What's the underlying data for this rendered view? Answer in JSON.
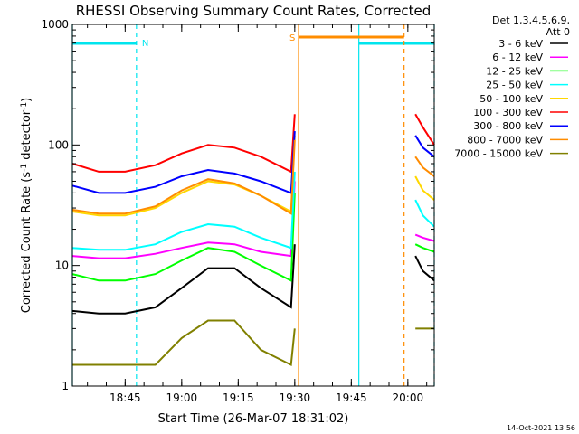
{
  "chart_data": {
    "type": "line",
    "title": "RHESSI Observing Summary Count Rates, Corrected",
    "ylabel": "Corrected Count Rate (s⁻¹ detector⁻¹)",
    "xlabel": "Start Time (26-Mar-07 18:31:02)",
    "yscale": "log",
    "ylim": [
      1,
      1000
    ],
    "xlim": [
      "18:31",
      "20:07"
    ],
    "x_ticks": [
      "18:45",
      "19:00",
      "19:15",
      "19:30",
      "19:45",
      "20:00"
    ],
    "y_ticks": [
      "1",
      "10",
      "100",
      "1000"
    ],
    "legend_header": [
      "Det 1,3,4,5,6,9,",
      "Att 0"
    ],
    "legend_position": "right",
    "background_color": "#ffffff",
    "axis_color": "#000000",
    "timestamp": "14-Oct-2021 13:56",
    "flags": [
      {
        "label": "N",
        "start": "18:31",
        "end": "18:48",
        "color": "#00e5ee"
      },
      {
        "label": "",
        "start": "19:47",
        "end": "20:07",
        "color": "#00e5ee"
      },
      {
        "label": "S",
        "start": "19:31",
        "end": "19:59",
        "color": "#ff8c00"
      }
    ],
    "series": [
      {
        "name": "3 - 6 keV",
        "color": "#000000",
        "x": [
          "18:31",
          "18:38",
          "18:45",
          "18:53",
          "19:00",
          "19:07",
          "19:14",
          "19:21",
          "19:29",
          "19:30",
          "20:02",
          "20:04",
          "20:07"
        ],
        "y": [
          4.2,
          4.0,
          4.0,
          4.5,
          6.5,
          9.5,
          9.5,
          6.5,
          4.5,
          15,
          12,
          9,
          7.5
        ]
      },
      {
        "name": "6 - 12 keV",
        "color": "#ff00ff",
        "x": [
          "18:31",
          "18:38",
          "18:45",
          "18:53",
          "19:00",
          "19:07",
          "19:14",
          "19:21",
          "19:29",
          "19:30",
          "20:02",
          "20:04",
          "20:07"
        ],
        "y": [
          12,
          11.5,
          11.5,
          12.5,
          14,
          15.5,
          15,
          13,
          12,
          50,
          18,
          17,
          16
        ]
      },
      {
        "name": "12 - 25 keV",
        "color": "#00ff00",
        "x": [
          "18:31",
          "18:38",
          "18:45",
          "18:53",
          "19:00",
          "19:07",
          "19:14",
          "19:21",
          "19:29",
          "19:30",
          "20:02",
          "20:04",
          "20:07"
        ],
        "y": [
          8.5,
          7.5,
          7.5,
          8.5,
          11,
          14,
          13,
          10,
          7.5,
          40,
          15,
          14,
          13
        ]
      },
      {
        "name": "25 - 50 keV",
        "color": "#00ffff",
        "x": [
          "18:31",
          "18:38",
          "18:45",
          "18:53",
          "19:00",
          "19:07",
          "19:14",
          "19:21",
          "19:29",
          "19:30",
          "20:02",
          "20:04",
          "20:07"
        ],
        "y": [
          14,
          13.5,
          13.5,
          15,
          19,
          22,
          21,
          17,
          14,
          60,
          35,
          26,
          21
        ]
      },
      {
        "name": "50 - 100 keV",
        "color": "#ffd700",
        "x": [
          "18:31",
          "18:38",
          "18:45",
          "18:53",
          "19:00",
          "19:07",
          "19:14",
          "19:21",
          "19:29",
          "19:30",
          "20:02",
          "20:04",
          "20:07"
        ],
        "y": [
          28,
          26,
          26,
          30,
          40,
          50,
          47,
          38,
          28,
          120,
          55,
          42,
          35
        ]
      },
      {
        "name": "100 - 300 keV",
        "color": "#ff0000",
        "x": [
          "18:31",
          "18:38",
          "18:45",
          "18:53",
          "19:00",
          "19:07",
          "19:14",
          "19:21",
          "19:29",
          "19:30",
          "20:02",
          "20:04",
          "20:07"
        ],
        "y": [
          70,
          60,
          60,
          68,
          85,
          100,
          95,
          80,
          60,
          180,
          180,
          140,
          100
        ]
      },
      {
        "name": "300 - 800 keV",
        "color": "#0000ff",
        "x": [
          "18:31",
          "18:38",
          "18:45",
          "18:53",
          "19:00",
          "19:07",
          "19:14",
          "19:21",
          "19:29",
          "19:30",
          "20:02",
          "20:04",
          "20:07"
        ],
        "y": [
          46,
          40,
          40,
          45,
          55,
          62,
          58,
          50,
          40,
          130,
          120,
          95,
          80
        ]
      },
      {
        "name": "800 - 7000 keV",
        "color": "#ff8c00",
        "x": [
          "18:31",
          "18:38",
          "18:45",
          "18:53",
          "19:00",
          "19:07",
          "19:14",
          "19:21",
          "19:29",
          "19:30",
          "20:02",
          "20:04",
          "20:07"
        ],
        "y": [
          29,
          27,
          27,
          31,
          42,
          52,
          48,
          38,
          27,
          110,
          80,
          65,
          55
        ]
      },
      {
        "name": "7000 - 15000 keV",
        "color": "#808000",
        "x": [
          "18:31",
          "18:38",
          "18:45",
          "18:53",
          "19:00",
          "19:07",
          "19:14",
          "19:21",
          "19:29",
          "19:30",
          "20:02",
          "20:04",
          "20:07"
        ],
        "y": [
          1.5,
          1.5,
          1.5,
          1.5,
          2.5,
          3.5,
          3.5,
          2,
          1.5,
          3,
          3,
          3,
          3
        ]
      }
    ]
  }
}
